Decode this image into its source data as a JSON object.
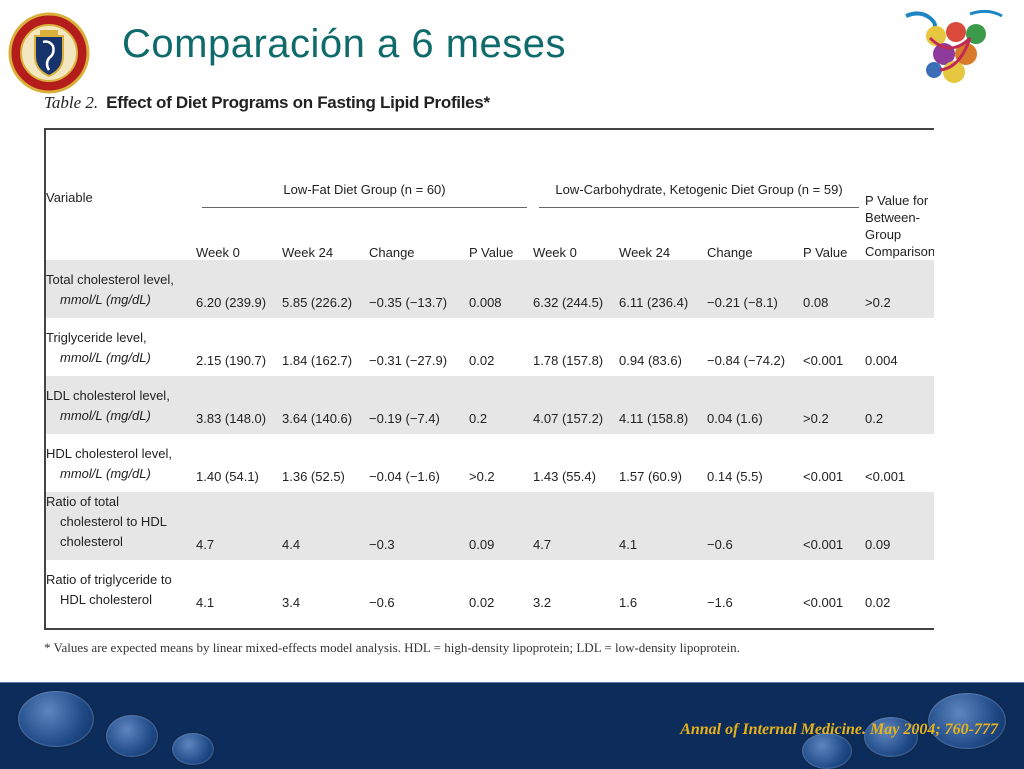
{
  "slide": {
    "title": "Comparación a 6 meses",
    "citation": "Annal of Internal Medicine. May 2004; 760-777"
  },
  "table": {
    "caption_num": "Table 2.",
    "caption_title": "Effect of Diet Programs on Fasting Lipid Profiles*",
    "variable_header": "Variable",
    "group1_header": "Low-Fat Diet Group (n = 60)",
    "group2_header": "Low-Carbohydrate, Ketogenic Diet Group (n = 59)",
    "comparison_header": [
      "P Value for",
      "Between-",
      "Group",
      "Comparison"
    ],
    "sub_headers": [
      "Week 0",
      "Week 24",
      "Change",
      "P Value",
      "Week 0",
      "Week 24",
      "Change",
      "P Value"
    ],
    "rows": [
      {
        "var": [
          "Total cholesterol level,"
        ],
        "unit": "mmol/L (mg/dL)",
        "vals": [
          "6.20 (239.9)",
          "5.85 (226.2)",
          "−0.35 (−13.7)",
          "0.008",
          "6.32 (244.5)",
          "6.11 (236.4)",
          "−0.21 (−8.1)",
          "0.08",
          ">0.2"
        ]
      },
      {
        "var": [
          "Triglyceride level,"
        ],
        "unit": "mmol/L (mg/dL)",
        "vals": [
          "2.15 (190.7)",
          "1.84 (162.7)",
          "−0.31 (−27.9)",
          "0.02",
          "1.78 (157.8)",
          "0.94 (83.6)",
          "−0.84 (−74.2)",
          "<0.001",
          "0.004"
        ]
      },
      {
        "var": [
          "LDL cholesterol level,"
        ],
        "unit": "mmol/L (mg/dL)",
        "vals": [
          "3.83 (148.0)",
          "3.64 (140.6)",
          "−0.19 (−7.4)",
          "0.2",
          "4.07 (157.2)",
          "4.11 (158.8)",
          "0.04 (1.6)",
          ">0.2",
          "0.2"
        ]
      },
      {
        "var": [
          "HDL cholesterol level,"
        ],
        "unit": "mmol/L (mg/dL)",
        "vals": [
          "1.40 (54.1)",
          "1.36 (52.5)",
          "−0.04 (−1.6)",
          ">0.2",
          "1.43 (55.4)",
          "1.57 (60.9)",
          "0.14 (5.5)",
          "<0.001",
          "<0.001"
        ]
      },
      {
        "var": [
          "Ratio of total",
          "cholesterol to HDL",
          "cholesterol"
        ],
        "unit": "",
        "vals": [
          "4.7",
          "4.4",
          "−0.3",
          "0.09",
          "4.7",
          "4.1",
          "−0.6",
          "<0.001",
          "0.09"
        ]
      },
      {
        "var": [
          "Ratio of triglyceride to",
          "HDL cholesterol"
        ],
        "unit": "",
        "vals": [
          "4.1",
          "3.4",
          "−0.6",
          "0.02",
          "3.2",
          "1.6",
          "−1.6",
          "<0.001",
          "0.02"
        ]
      }
    ],
    "footnote": "* Values are expected means by linear mixed-effects model analysis. HDL = high-density lipoprotein; LDL = low-density lipoprotein."
  },
  "colors": {
    "title": "#0f6b6b",
    "band": "#0c2d5c",
    "citation": "#e8b21a",
    "shade": "#e6e6e6"
  },
  "icons": {
    "left_logo": "university-seal-icon",
    "right_logo": "colorful-molecules-icon"
  }
}
